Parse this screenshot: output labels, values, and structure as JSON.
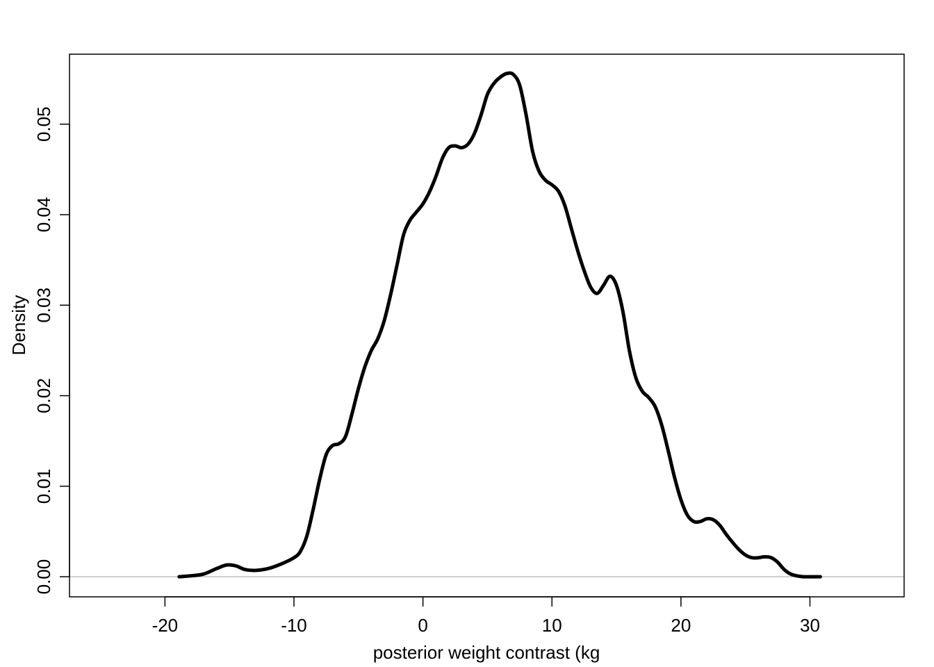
{
  "chart_data": {
    "type": "line",
    "title": "",
    "xlabel": "posterior weight contrast (kg",
    "ylabel": "Density",
    "xlim": [
      -27.4,
      37.3
    ],
    "ylim": [
      -0.00222,
      0.05773
    ],
    "xticks": [
      -20,
      -10,
      0,
      10,
      20,
      30
    ],
    "yticks": [
      0.0,
      0.01,
      0.02,
      0.03,
      0.04,
      0.05
    ],
    "xtick_labels": [
      "-20",
      "-10",
      "0",
      "10",
      "20",
      "30"
    ],
    "ytick_labels": [
      "0.00",
      "0.01",
      "0.02",
      "0.03",
      "0.04",
      "0.05"
    ],
    "baseline": 0,
    "grid": false,
    "legend": "none",
    "colors": {
      "line": "#000000",
      "baseline": "#bebebe",
      "frame": "#000000"
    },
    "series": [
      {
        "x": [
          -18.9,
          -18.0,
          -17.0,
          -16.0,
          -15.2,
          -14.5,
          -13.8,
          -13.0,
          -12.0,
          -11.0,
          -10.0,
          -9.5,
          -9.0,
          -8.5,
          -8.0,
          -7.5,
          -7.0,
          -6.5,
          -6.0,
          -5.5,
          -5.0,
          -4.5,
          -4.0,
          -3.5,
          -3.0,
          -2.5,
          -2.0,
          -1.5,
          -1.0,
          -0.5,
          0.0,
          0.5,
          1.0,
          1.5,
          2.0,
          2.5,
          3.0,
          3.5,
          4.0,
          4.5,
          5.0,
          5.5,
          6.0,
          6.5,
          7.0,
          7.5,
          8.0,
          8.5,
          9.0,
          9.5,
          10.0,
          10.5,
          11.0,
          11.5,
          12.0,
          12.5,
          13.0,
          13.5,
          14.0,
          14.5,
          15.0,
          15.5,
          16.0,
          16.5,
          17.0,
          17.5,
          18.0,
          18.5,
          19.0,
          19.5,
          20.0,
          20.5,
          21.0,
          21.5,
          22.0,
          22.5,
          23.0,
          23.5,
          24.0,
          24.5,
          25.0,
          25.5,
          26.0,
          26.5,
          27.0,
          27.5,
          28.0,
          28.5,
          29.0,
          29.5,
          30.0,
          30.8
        ],
        "y": [
          0.0,
          0.0001,
          0.0003,
          0.0009,
          0.0013,
          0.0012,
          0.0008,
          0.0007,
          0.0009,
          0.0014,
          0.0021,
          0.0028,
          0.0045,
          0.0075,
          0.0108,
          0.0135,
          0.0145,
          0.0147,
          0.0155,
          0.018,
          0.0208,
          0.0232,
          0.025,
          0.0263,
          0.0283,
          0.0312,
          0.0345,
          0.0378,
          0.0394,
          0.0403,
          0.0412,
          0.0425,
          0.0442,
          0.0462,
          0.0474,
          0.0476,
          0.0474,
          0.0478,
          0.049,
          0.051,
          0.0533,
          0.0545,
          0.0552,
          0.0556,
          0.0555,
          0.0543,
          0.051,
          0.047,
          0.0448,
          0.0438,
          0.0433,
          0.0426,
          0.041,
          0.0385,
          0.036,
          0.0338,
          0.032,
          0.0313,
          0.0322,
          0.0332,
          0.0322,
          0.0293,
          0.025,
          0.022,
          0.0205,
          0.0198,
          0.0188,
          0.0168,
          0.014,
          0.011,
          0.0085,
          0.0068,
          0.0061,
          0.0061,
          0.0064,
          0.0063,
          0.0057,
          0.0047,
          0.0038,
          0.003,
          0.0024,
          0.0021,
          0.0021,
          0.0022,
          0.0021,
          0.0016,
          0.0008,
          0.0003,
          0.0001,
          0.0,
          0.0,
          0.0
        ]
      }
    ]
  }
}
